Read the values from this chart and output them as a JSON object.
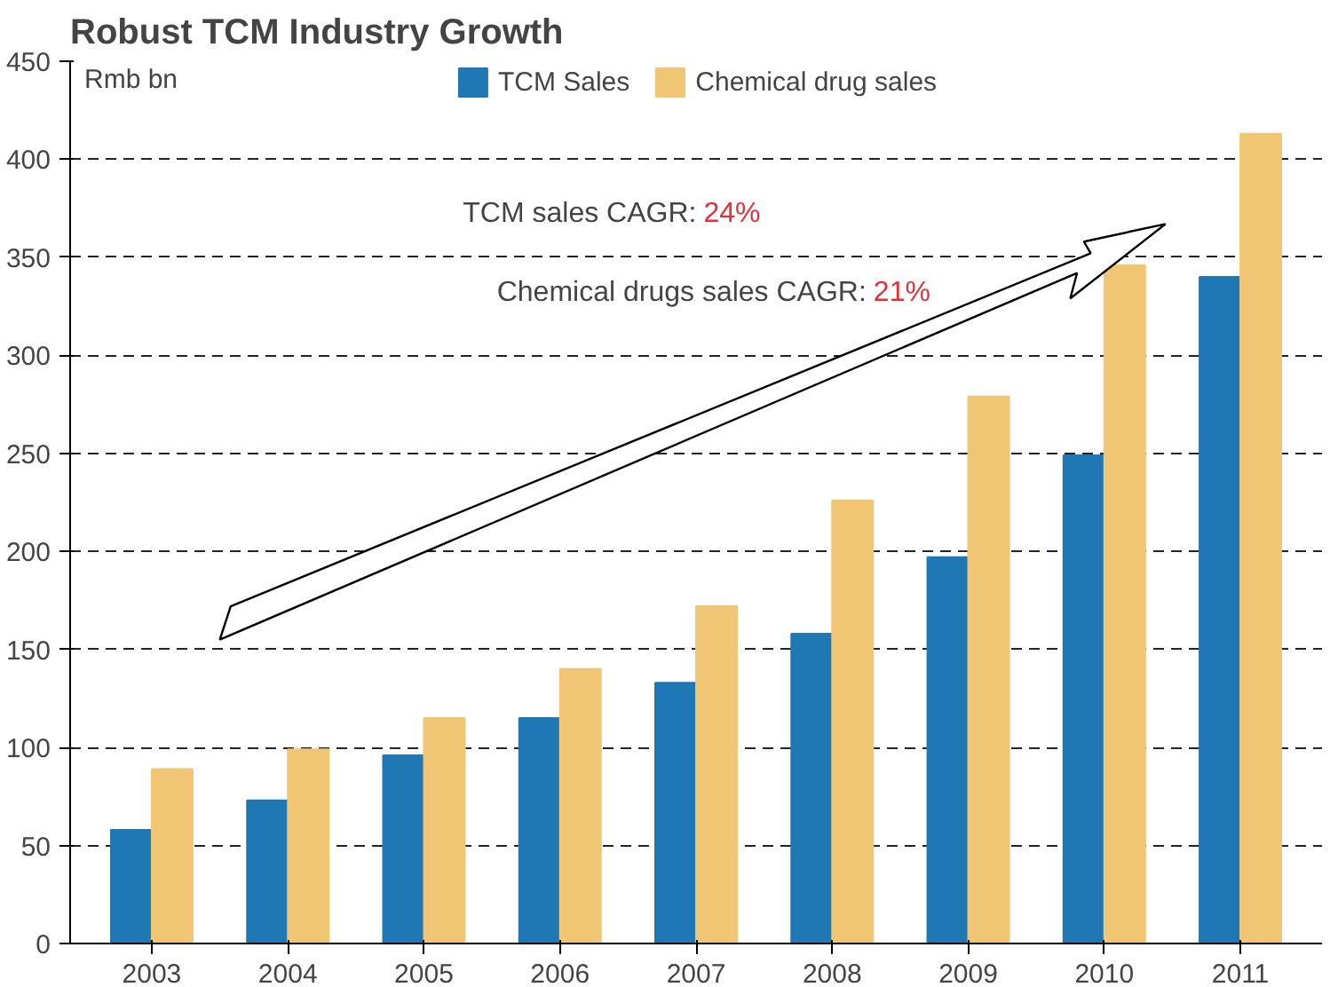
{
  "chart_data": {
    "type": "bar",
    "title": "Robust TCM Industry Growth",
    "ylabel": "Rmb bn",
    "categories": [
      "2003",
      "2004",
      "2005",
      "2006",
      "2007",
      "2008",
      "2009",
      "2010",
      "2011"
    ],
    "series": [
      {
        "name": "TCM Sales",
        "color": "#1f77b4",
        "values": [
          58,
          73,
          96,
          115,
          133,
          158,
          197,
          249,
          340
        ]
      },
      {
        "name": "Chemical drug sales",
        "color": "#f0c674",
        "values": [
          89,
          99,
          115,
          140,
          172,
          226,
          279,
          346,
          413
        ]
      }
    ],
    "ylim": [
      0,
      450
    ],
    "yticks": [
      0,
      50,
      100,
      150,
      200,
      250,
      300,
      350,
      400,
      450
    ],
    "grid": "y",
    "legend": "top",
    "annotations": [
      "TCM sales CAGR: 24%",
      "Chemical drugs sales CAGR: 21%"
    ]
  }
}
